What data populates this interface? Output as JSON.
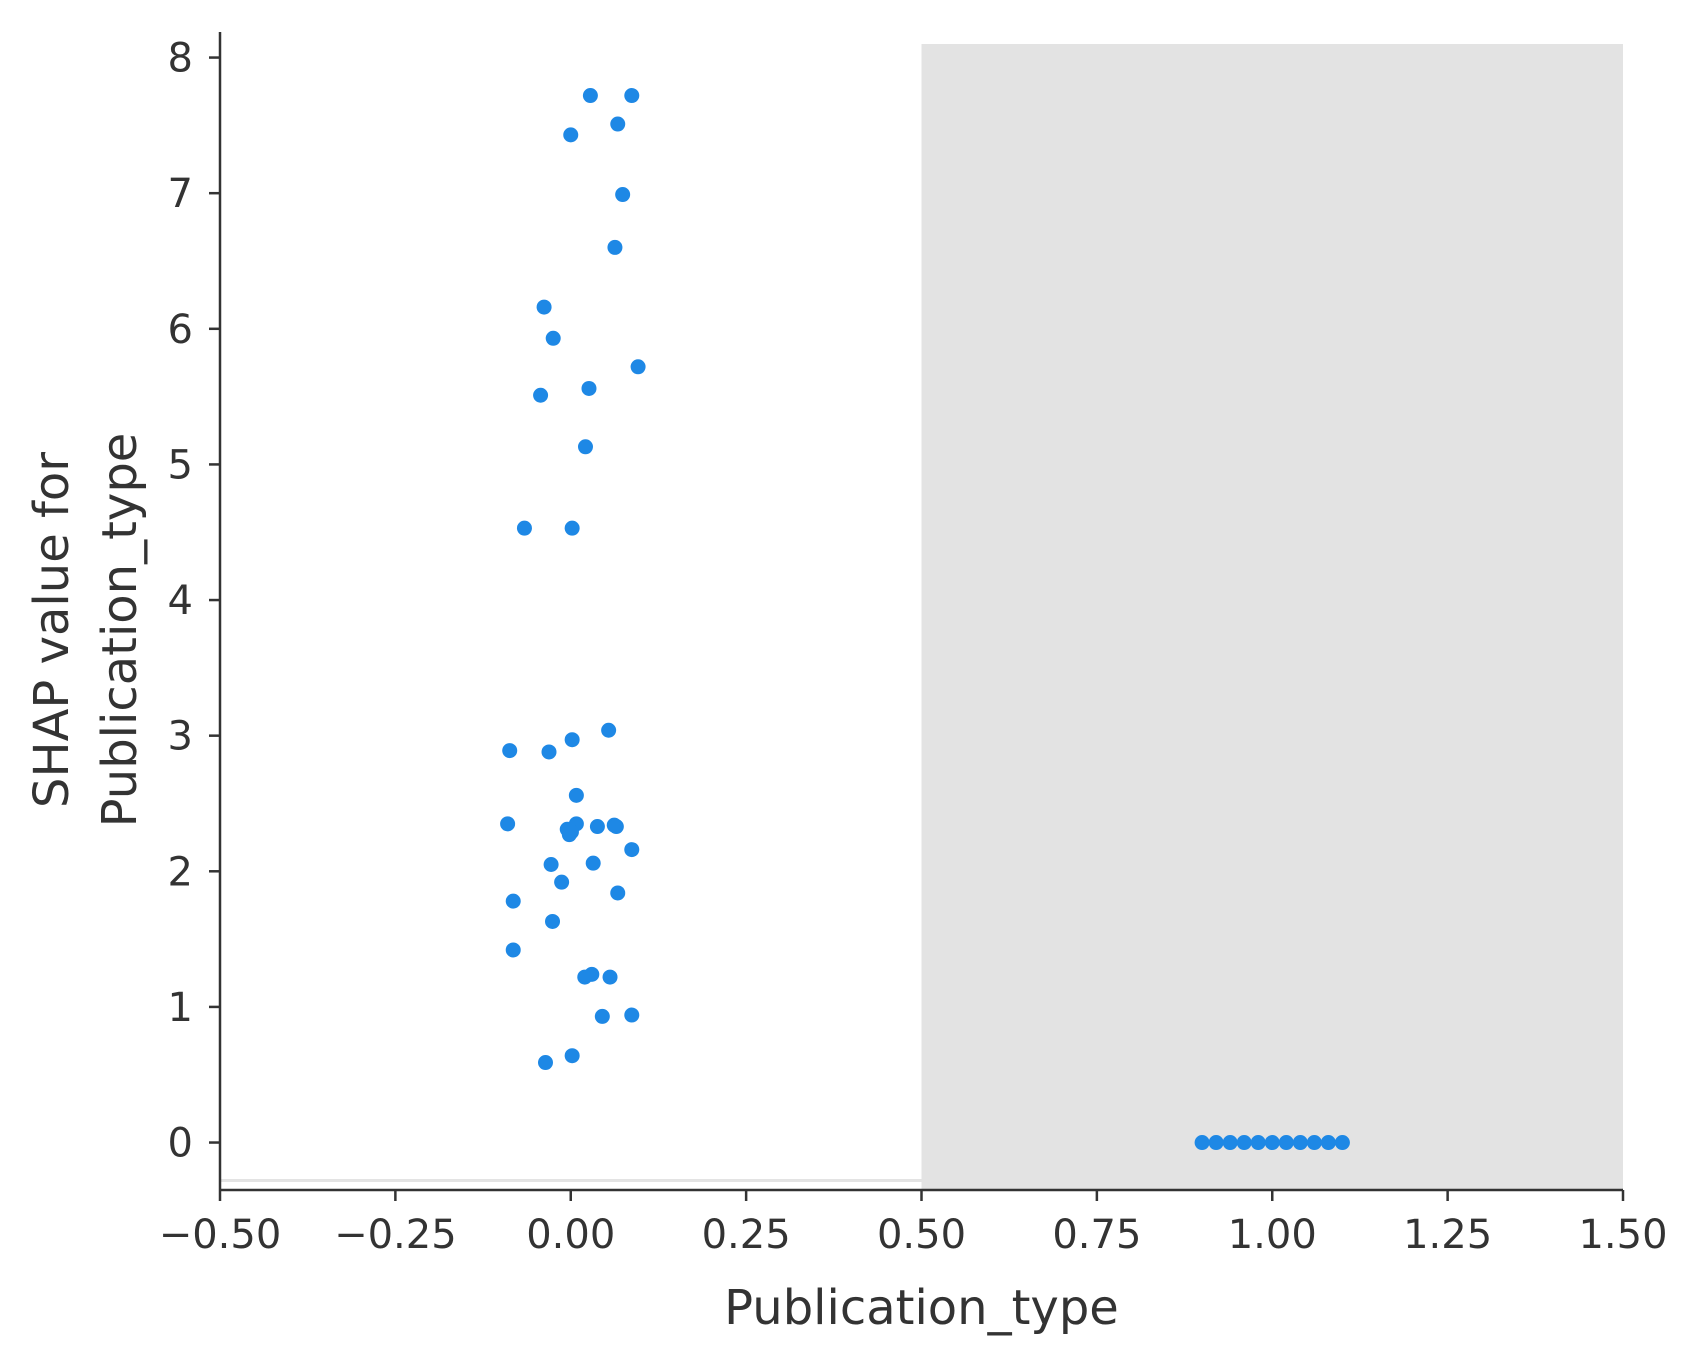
{
  "chart_data": {
    "type": "scatter",
    "title": "",
    "xlabel": "Publication_type",
    "ylabel_lines": [
      "SHAP value for",
      "Publication_type"
    ],
    "xlim": [
      -0.5,
      1.5
    ],
    "ylim": [
      -0.35,
      8.1
    ],
    "xticks": [
      -0.5,
      -0.25,
      0.0,
      0.25,
      0.5,
      0.75,
      1.0,
      1.25,
      1.5
    ],
    "xtick_labels": [
      "−0.50",
      "−0.25",
      "0.00",
      "0.25",
      "0.50",
      "0.75",
      "1.00",
      "1.25",
      "1.50"
    ],
    "yticks": [
      0,
      1,
      2,
      3,
      4,
      5,
      6,
      7,
      8
    ],
    "ytick_labels": [
      "0",
      "1",
      "2",
      "3",
      "4",
      "5",
      "6",
      "7",
      "8"
    ],
    "grid": false,
    "point_color": "#1E88E5",
    "background_band": {
      "x_from": 0.5,
      "x_to": 1.5,
      "color": "#e3e3e3"
    },
    "points": [
      {
        "x": 0.028,
        "y": 7.72
      },
      {
        "x": 0.087,
        "y": 7.72
      },
      {
        "x": 0.067,
        "y": 7.51
      },
      {
        "x": 0.0,
        "y": 7.43
      },
      {
        "x": 0.074,
        "y": 6.99
      },
      {
        "x": 0.063,
        "y": 6.6
      },
      {
        "x": -0.038,
        "y": 6.16
      },
      {
        "x": -0.025,
        "y": 5.93
      },
      {
        "x": 0.096,
        "y": 5.72
      },
      {
        "x": 0.026,
        "y": 5.56
      },
      {
        "x": -0.043,
        "y": 5.51
      },
      {
        "x": 0.021,
        "y": 5.13
      },
      {
        "x": -0.066,
        "y": 4.53
      },
      {
        "x": 0.002,
        "y": 4.53
      },
      {
        "x": 0.054,
        "y": 3.04
      },
      {
        "x": 0.002,
        "y": 2.97
      },
      {
        "x": -0.087,
        "y": 2.89
      },
      {
        "x": -0.031,
        "y": 2.88
      },
      {
        "x": 0.008,
        "y": 2.56
      },
      {
        "x": -0.09,
        "y": 2.35
      },
      {
        "x": 0.008,
        "y": 2.35
      },
      {
        "x": 0.038,
        "y": 2.33
      },
      {
        "x": 0.062,
        "y": 2.34
      },
      {
        "x": 0.065,
        "y": 2.33
      },
      {
        "x": -0.005,
        "y": 2.31
      },
      {
        "x": -0.002,
        "y": 2.27
      },
      {
        "x": 0.001,
        "y": 2.29
      },
      {
        "x": 0.087,
        "y": 2.16
      },
      {
        "x": -0.028,
        "y": 2.05
      },
      {
        "x": 0.032,
        "y": 2.06
      },
      {
        "x": -0.013,
        "y": 1.92
      },
      {
        "x": 0.067,
        "y": 1.84
      },
      {
        "x": -0.082,
        "y": 1.78
      },
      {
        "x": -0.026,
        "y": 1.63
      },
      {
        "x": -0.082,
        "y": 1.42
      },
      {
        "x": 0.03,
        "y": 1.24
      },
      {
        "x": 0.02,
        "y": 1.22
      },
      {
        "x": 0.056,
        "y": 1.22
      },
      {
        "x": 0.045,
        "y": 0.93
      },
      {
        "x": 0.087,
        "y": 0.94
      },
      {
        "x": 0.002,
        "y": 0.64
      },
      {
        "x": -0.036,
        "y": 0.59
      },
      {
        "x": 0.9,
        "y": 0.0
      },
      {
        "x": 0.92,
        "y": 0.0
      },
      {
        "x": 0.94,
        "y": 0.0
      },
      {
        "x": 0.96,
        "y": 0.0
      },
      {
        "x": 0.98,
        "y": 0.0
      },
      {
        "x": 1.0,
        "y": 0.0
      },
      {
        "x": 1.02,
        "y": 0.0
      },
      {
        "x": 1.04,
        "y": 0.0
      },
      {
        "x": 1.06,
        "y": 0.0
      },
      {
        "x": 1.08,
        "y": 0.0
      },
      {
        "x": 1.1,
        "y": 0.0
      }
    ]
  }
}
